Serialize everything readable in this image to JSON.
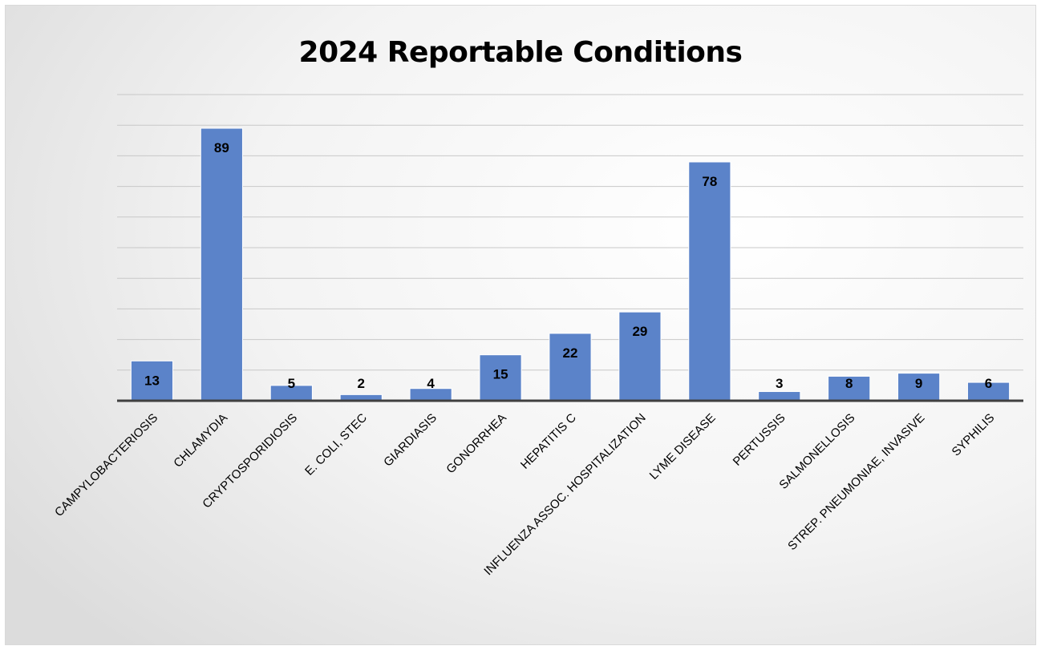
{
  "chart_data": {
    "type": "bar",
    "title": "2024 Reportable Conditions",
    "xlabel": "",
    "ylabel": "",
    "categories": [
      "CAMPYLOBACTERIOSIS",
      "CHLAMYDIA",
      "CRYPTOSPORIDIOSIS",
      "E. COLI, STEC",
      "GIARDIASIS",
      "GONORRHEA",
      "HEPATITIS C",
      "INFLUENZA ASSOC. HOSPITALIZATION",
      "LYME DISEASE",
      "PERTUSSIS",
      "SALMONELLOSIS",
      "STREP. PNEUMONIAE, INVASIVE",
      "SYPHILIS"
    ],
    "values": [
      13,
      89,
      5,
      2,
      4,
      15,
      22,
      29,
      78,
      3,
      8,
      9,
      6
    ],
    "ylim": [
      0,
      100
    ],
    "grid": true,
    "legend": "none",
    "bar_color": "#5b83c9",
    "bar_edge_color": "#ffffff"
  }
}
